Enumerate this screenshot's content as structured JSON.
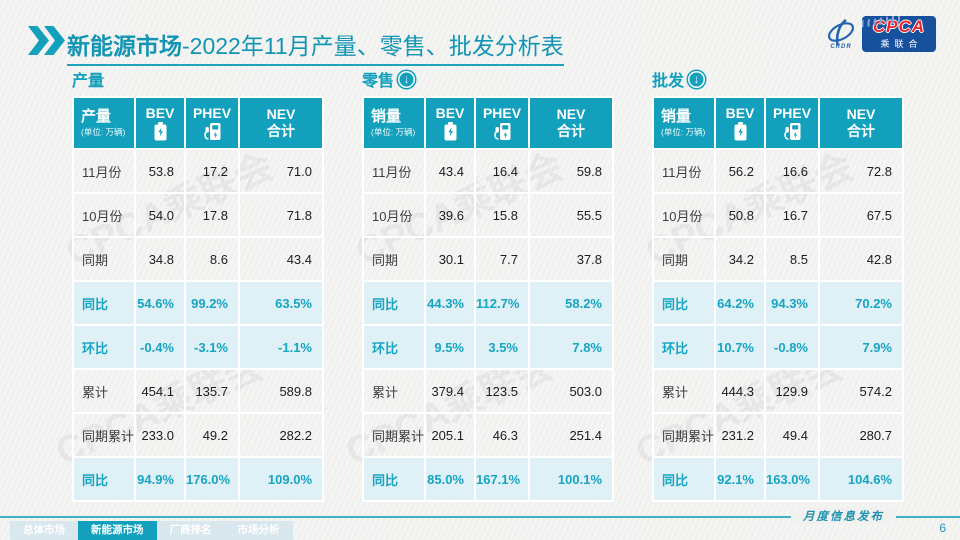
{
  "header": {
    "title_bold": "新能源市场",
    "title_rest": "-2022年11月产量、零售、批发分析表",
    "logo": {
      "swirl_sub": "CRDR",
      "badge_main": "CPCA",
      "badge_sub": "乘联合"
    }
  },
  "colors": {
    "teal": "#12a0bc",
    "teal_text": "#16a5c2",
    "highlight_row_bg": "#dff0f6",
    "badge_blue": "#17519e",
    "badge_red": "#e8262d"
  },
  "watermark": "CPCA乘联会",
  "tables": [
    {
      "section_label": "产量",
      "header": {
        "label": "产量",
        "unit": "(单位: 万辆)",
        "bev": "BEV",
        "phev": "PHEV",
        "nev_line1": "NEV",
        "nev_line2": "合计"
      },
      "rows": [
        {
          "label": "11月份",
          "bev": "53.8",
          "phev": "17.2",
          "nev": "71.0",
          "highlight": false
        },
        {
          "label": "10月份",
          "bev": "54.0",
          "phev": "17.8",
          "nev": "71.8",
          "highlight": false
        },
        {
          "label": "同期",
          "bev": "34.8",
          "phev": "8.6",
          "nev": "43.4",
          "highlight": false
        },
        {
          "label": "同比",
          "bev": "54.6%",
          "phev": "99.2%",
          "nev": "63.5%",
          "highlight": true
        },
        {
          "label": "环比",
          "bev": "-0.4%",
          "phev": "-3.1%",
          "nev": "-1.1%",
          "highlight": true
        },
        {
          "label": "累计",
          "bev": "454.1",
          "phev": "135.7",
          "nev": "589.8",
          "highlight": false
        },
        {
          "label": "同期累计",
          "bev": "233.0",
          "phev": "49.2",
          "nev": "282.2",
          "highlight": false
        },
        {
          "label": "同比",
          "bev": "94.9%",
          "phev": "176.0%",
          "nev": "109.0%",
          "highlight": true
        }
      ]
    },
    {
      "section_label": "零售",
      "header": {
        "label": "销量",
        "unit": "(单位: 万辆)",
        "bev": "BEV",
        "phev": "PHEV",
        "nev_line1": "NEV",
        "nev_line2": "合计"
      },
      "rows": [
        {
          "label": "11月份",
          "bev": "43.4",
          "phev": "16.4",
          "nev": "59.8",
          "highlight": false
        },
        {
          "label": "10月份",
          "bev": "39.6",
          "phev": "15.8",
          "nev": "55.5",
          "highlight": false
        },
        {
          "label": "同期",
          "bev": "30.1",
          "phev": "7.7",
          "nev": "37.8",
          "highlight": false
        },
        {
          "label": "同比",
          "bev": "44.3%",
          "phev": "112.7%",
          "nev": "58.2%",
          "highlight": true
        },
        {
          "label": "环比",
          "bev": "9.5%",
          "phev": "3.5%",
          "nev": "7.8%",
          "highlight": true
        },
        {
          "label": "累计",
          "bev": "379.4",
          "phev": "123.5",
          "nev": "503.0",
          "highlight": false
        },
        {
          "label": "同期累计",
          "bev": "205.1",
          "phev": "46.3",
          "nev": "251.4",
          "highlight": false
        },
        {
          "label": "同比",
          "bev": "85.0%",
          "phev": "167.1%",
          "nev": "100.1%",
          "highlight": true
        }
      ]
    },
    {
      "section_label": "批发",
      "header": {
        "label": "销量",
        "unit": "(单位: 万辆)",
        "bev": "BEV",
        "phev": "PHEV",
        "nev_line1": "NEV",
        "nev_line2": "合计"
      },
      "rows": [
        {
          "label": "11月份",
          "bev": "56.2",
          "phev": "16.6",
          "nev": "72.8",
          "highlight": false
        },
        {
          "label": "10月份",
          "bev": "50.8",
          "phev": "16.7",
          "nev": "67.5",
          "highlight": false
        },
        {
          "label": "同期",
          "bev": "34.2",
          "phev": "8.5",
          "nev": "42.8",
          "highlight": false
        },
        {
          "label": "同比",
          "bev": "64.2%",
          "phev": "94.3%",
          "nev": "70.2%",
          "highlight": true
        },
        {
          "label": "环比",
          "bev": "10.7%",
          "phev": "-0.8%",
          "nev": "7.9%",
          "highlight": true
        },
        {
          "label": "累计",
          "bev": "444.3",
          "phev": "129.9",
          "nev": "574.2",
          "highlight": false
        },
        {
          "label": "同期累计",
          "bev": "231.2",
          "phev": "49.4",
          "nev": "280.7",
          "highlight": false
        },
        {
          "label": "同比",
          "bev": "92.1%",
          "phev": "163.0%",
          "nev": "104.6%",
          "highlight": true
        }
      ]
    }
  ],
  "footer": {
    "tabs": [
      {
        "label": "总体市场",
        "active": false
      },
      {
        "label": "新能源市场",
        "active": true
      },
      {
        "label": "厂商排名",
        "active": false
      },
      {
        "label": "市场分析",
        "active": false
      }
    ],
    "caption": "月度信息发布",
    "page_number": "6"
  }
}
